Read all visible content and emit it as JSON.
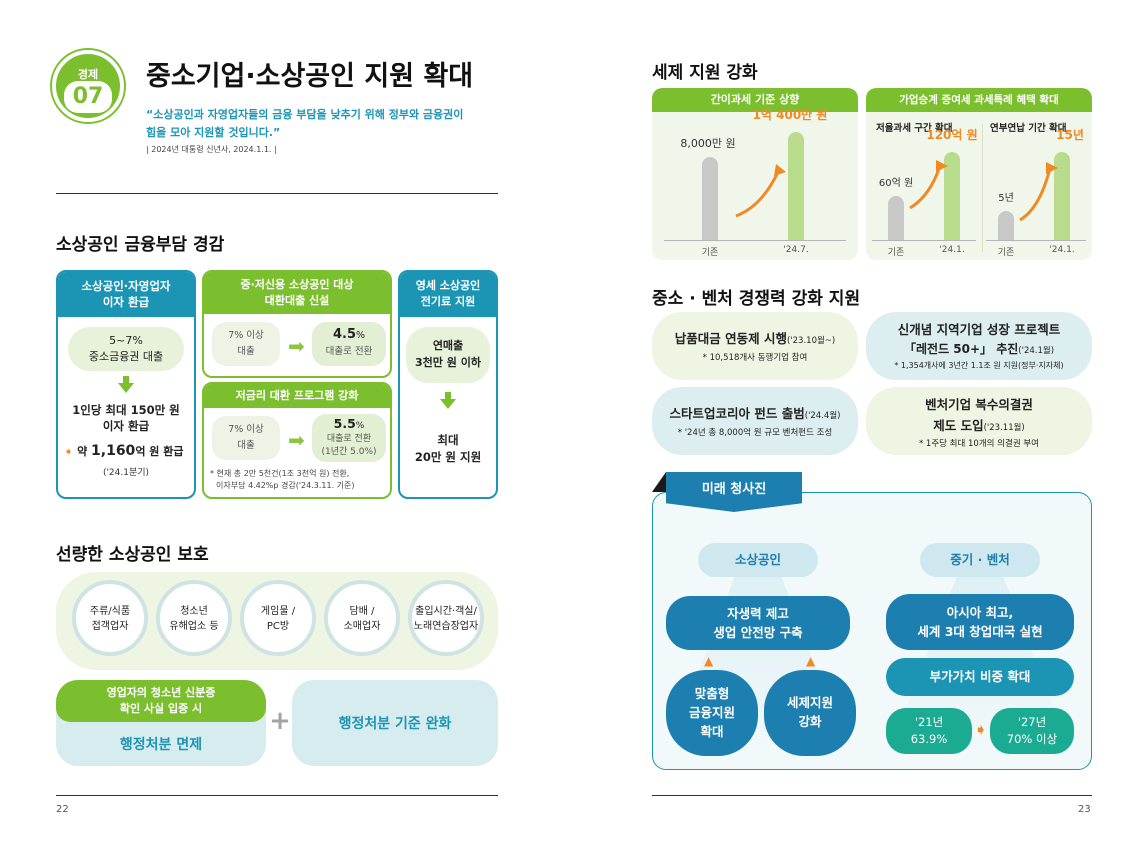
{
  "left": {
    "badge": {
      "label": "경제",
      "number": "07"
    },
    "title": "중소기업·소상공인 지원 확대",
    "quote_line1": "“소상공인과 자영업자들의 금융 부담을 낮추기 위해 정부와 금융권이",
    "quote_line2": "힘을 모아 지원할 것입니다.”",
    "quote_source": "| 2024년 대통령 신년사, 2024.1.1. |",
    "section1": {
      "heading": "소상공인 금융부담 경감",
      "box1": {
        "title_line1": "소상공인·자영업자",
        "title_line2": "이자 환급",
        "pill_line1": "5~7%",
        "pill_line2": "중소금융권 대출",
        "result_line1": "1인당 최대 150만 원",
        "result_line2": "이자 환급",
        "refund_prefix": "약 ",
        "refund_amount": "1,160",
        "refund_suffix": "억 원 환급",
        "refund_period": "('24.1분기)"
      },
      "box2": {
        "title_line1": "중·저신용 소상공인 대상",
        "title_line2": "대환대출 신설",
        "from_line1": "7% 이상",
        "from_line2": "대출",
        "to_value": "4.5",
        "to_unit": "%",
        "to_label": "대출로 전환"
      },
      "box3": {
        "title": "저금리 대환 프로그램 강화",
        "from_line1": "7% 이상",
        "from_line2": "대출",
        "to_value": "5.5",
        "to_unit": "%",
        "to_label": "대출로 전환",
        "to_note": "(1년간 5.0%)",
        "footnote_line1": "* 현재 총 2만 5천건(1조 3천억 원) 전환,",
        "footnote_line2": "이자부담 4.42%p 경감('24.3.11. 기준)"
      },
      "box4": {
        "title_line1": "영세 소상공인",
        "title_line2": "전기료 지원",
        "pill_line1": "연매출",
        "pill_line2": "3천만 원 이하",
        "result_line1": "최대",
        "result_line2": "20만 원 지원"
      }
    },
    "section2": {
      "heading": "선량한 소상공인 보호",
      "circles": [
        {
          "line1": "주류/식품",
          "line2": "접객업자"
        },
        {
          "line1": "청소년",
          "line2": "유해업소 등"
        },
        {
          "line1": "게임물 /",
          "line2": "PC방"
        },
        {
          "line1": "담배 /",
          "line2": "소매업자"
        },
        {
          "line1": "출입시간·객실/",
          "line2": "노래연습장업자"
        }
      ],
      "cond_line1": "영업자의 청소년 신분증",
      "cond_line2": "확인 사실 입증 시",
      "exempt": "행정처분 면제",
      "plus": "+",
      "relax": "행정처분 기준 완화"
    },
    "page_number": "22"
  },
  "right": {
    "tax": {
      "heading": "세제 지원 강화",
      "panel1": {
        "title": "간이과세 기준 상향",
        "chart_data": {
          "type": "bar",
          "categories": [
            "기존",
            "'24.7."
          ],
          "values": [
            8000,
            10400
          ],
          "value_labels": [
            "8,000만 원",
            "1억 400만 원"
          ]
        }
      },
      "panel2": {
        "title": "가업승계 증여세 과세특례 혜택 확대",
        "sub1": {
          "title": "저율과세 구간 확대",
          "chart_data": {
            "type": "bar",
            "categories": [
              "기존",
              "'24.1."
            ],
            "values": [
              60,
              120
            ],
            "value_labels": [
              "60억 원",
              "120억 원"
            ]
          }
        },
        "sub2": {
          "title": "연부연납 기간 확대",
          "chart_data": {
            "type": "bar",
            "categories": [
              "기존",
              "'24.1."
            ],
            "values": [
              5,
              15
            ],
            "value_labels": [
              "5년",
              "15년"
            ]
          }
        }
      }
    },
    "venture": {
      "heading": "중소 · 벤처 경쟁력 강화 지원",
      "items": [
        {
          "title": "납품대금 연동제 시행",
          "date": "('23.10월~)",
          "note": "* 10,518개사 동행기업 참여"
        },
        {
          "title_line1": "신개념 지역기업 성장 프로젝트",
          "title_line2": "「레전드 50+」 추진",
          "date": "('24.1월)",
          "note": "* 1,354개사에 3년간 1.1조 원 지원(정부·지자체)"
        },
        {
          "title": "스타트업코리아 펀드 출범",
          "date": "('24.4월)",
          "note": "* '24년 총 8,000억 원 규모 벤처펀드 조성"
        },
        {
          "title_line1": "벤처기업 복수의결권",
          "title_line2": "제도 도입",
          "date": "('23.11월)",
          "note": "* 1주당 최대 10개의 의결권 부여"
        }
      ]
    },
    "future": {
      "tab": "미래 청사진",
      "left_label": "소상공인",
      "left_main_line1": "자생력 제고",
      "left_main_line2": "생업 안전망 구축",
      "left_sub1_line1": "맞춤형",
      "left_sub1_line2": "금융지원",
      "left_sub1_line3": "확대",
      "left_sub2_line1": "세제지원",
      "left_sub2_line2": "강화",
      "right_label": "중기 · 벤처",
      "right_main_line1": "아시아 최고,",
      "right_main_line2": "세계 3대 창업대국 실현",
      "right_sub": "부가가치 비중 확대",
      "right_from_line1": "'21년",
      "right_from_line2": "63.9%",
      "right_to_line1": "'27년",
      "right_to_line2": "70% 이상"
    },
    "page_number": "23"
  },
  "colors": {
    "green": "#7cbf2e",
    "blue": "#1c95b5",
    "orange": "#f08a24",
    "navy": "#1a6fa8"
  }
}
